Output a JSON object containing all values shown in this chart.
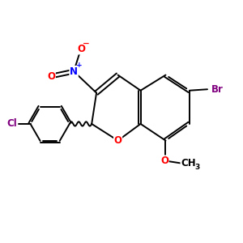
{
  "background": "#ffffff",
  "bond_color": "#000000",
  "figsize": [
    3.0,
    3.0
  ],
  "dpi": 100,
  "atom_colors": {
    "O": "#ff0000",
    "N": "#0000ff",
    "Br": "#800080",
    "Cl": "#800080",
    "C": "#000000"
  },
  "lw": 1.4,
  "fs": 8.5
}
